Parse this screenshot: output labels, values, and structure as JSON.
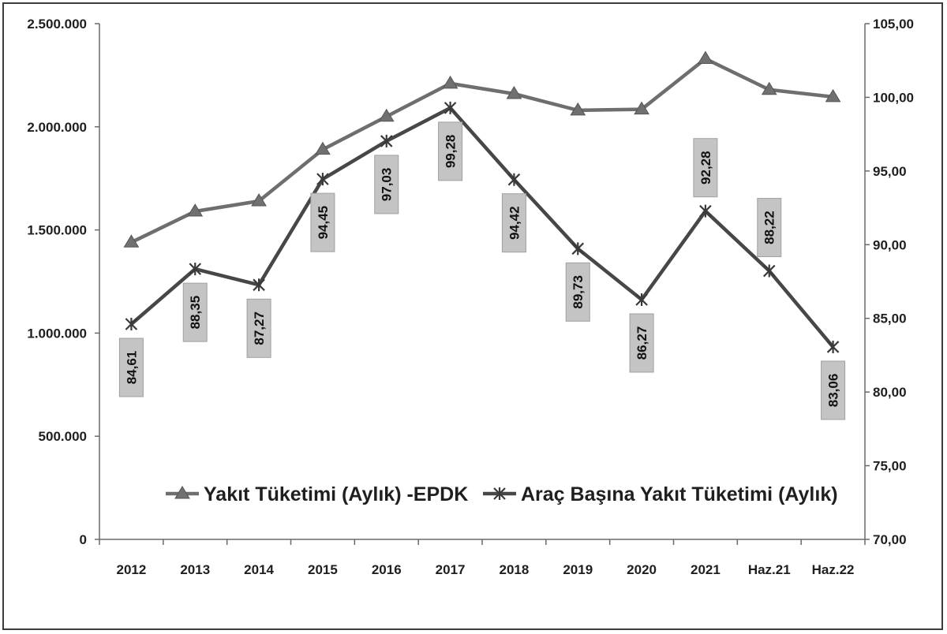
{
  "chart_data": {
    "type": "line",
    "categories": [
      "2012",
      "2013",
      "2014",
      "2015",
      "2016",
      "2017",
      "2018",
      "2019",
      "2020",
      "2021",
      "Haz.21",
      "Haz.22"
    ],
    "series": [
      {
        "name": "Yakıt Tüketimi (Aylık) -EPDK",
        "axis": "left",
        "marker": "triangle",
        "color": "#6e6e6e",
        "values": [
          1440000,
          1590000,
          1640000,
          1890000,
          2050000,
          2210000,
          2160000,
          2080000,
          2085000,
          2330000,
          2180000,
          2145000
        ]
      },
      {
        "name": "Araç Başına Yakıt Tüketimi (Aylık)",
        "axis": "right",
        "marker": "asterisk",
        "color": "#474747",
        "values": [
          84.61,
          88.35,
          87.27,
          94.45,
          97.03,
          99.28,
          94.42,
          89.73,
          86.27,
          92.28,
          88.22,
          83.06
        ],
        "data_labels": [
          "84,61",
          "88,35",
          "87,27",
          "94,45",
          "97,03",
          "99,28",
          "94,42",
          "89,73",
          "86,27",
          "92,28",
          "88,22",
          "83,06"
        ]
      }
    ],
    "y_left": {
      "ylim": [
        0,
        2500000
      ],
      "ticks": [
        0,
        500000,
        1000000,
        1500000,
        2000000,
        2500000
      ],
      "tick_labels": [
        "0",
        "500.000",
        "1.000.000",
        "1.500.000",
        "2.000.000",
        "2.500.000"
      ]
    },
    "y_right": {
      "ylim": [
        70,
        105
      ],
      "ticks": [
        70,
        75,
        80,
        85,
        90,
        95,
        100,
        105
      ],
      "tick_labels": [
        "70,00",
        "75,00",
        "80,00",
        "85,00",
        "90,00",
        "95,00",
        "100,00",
        "105,00"
      ]
    },
    "grid": false,
    "legend_position": "bottom-inside"
  }
}
